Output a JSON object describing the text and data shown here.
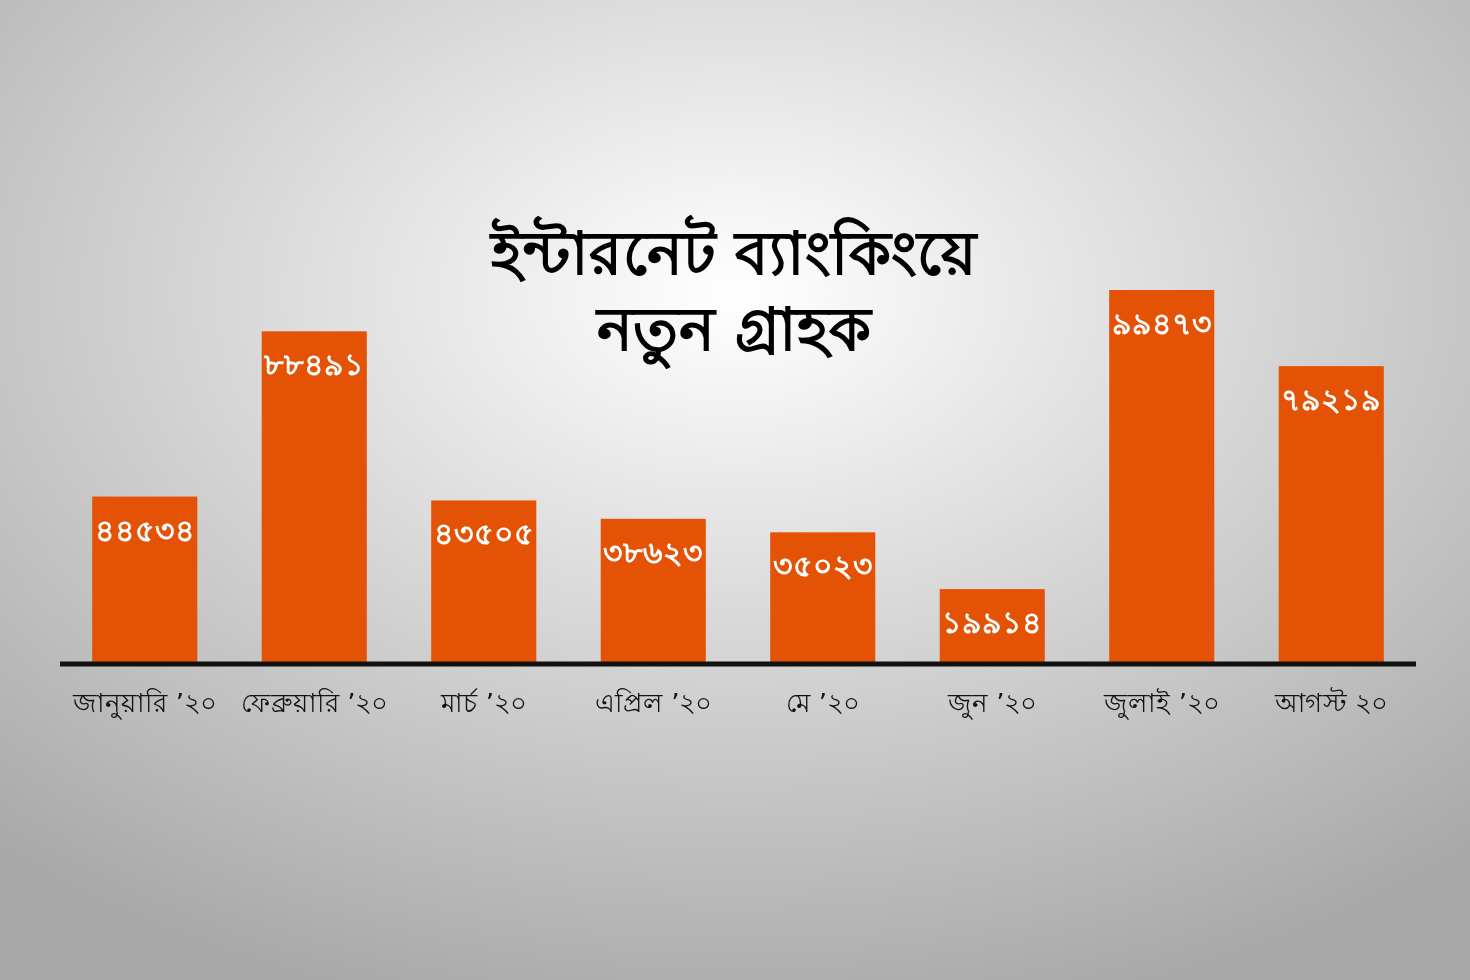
{
  "chart_data": {
    "type": "bar",
    "title": "ইন্টারনেট ব্যাংকিংয়ে নতুন গ্রাহক",
    "categories": [
      "জানুয়ারি ’২০",
      "ফেব্রুয়ারি ’২০",
      "মার্চ ’২০",
      "এপ্রিল ’২০",
      "মে ’২০",
      "জুন ’২০",
      "জুলাই ’২০",
      "আগস্ট ২০"
    ],
    "values": [
      44534,
      88491,
      43505,
      38623,
      35023,
      19914,
      99473,
      79219
    ],
    "value_labels": [
      "৪৪৫৩৪",
      "৮৮৪৯১",
      "৪৩৫০৫",
      "৩৮৬২৩",
      "৩৫০২৩",
      "১৯৯১৪",
      "৯৯৪৭৩",
      "৭৯২১৯"
    ],
    "color": "#e35205",
    "grid": false
  }
}
